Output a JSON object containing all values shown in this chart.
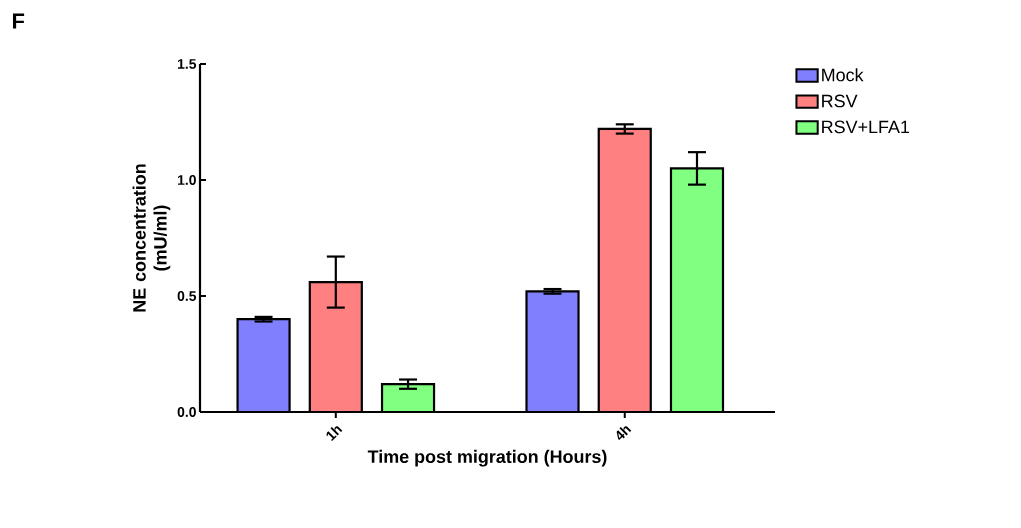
{
  "chart_data": {
    "type": "bar",
    "categories": [
      "1h",
      "4h"
    ],
    "xlabel": "Time post migration (Hours)",
    "ylabel": "NE concentration (mU/ml)",
    "annotations": [
      "F"
    ],
    "series": [
      {
        "name": "Mock",
        "color": "#8080ff",
        "values": [
          0.4,
          0.52
        ],
        "errors": [
          0.01,
          0.01
        ]
      },
      {
        "name": "RSV",
        "color": "#ff8080",
        "values": [
          0.56,
          1.22
        ],
        "errors": [
          0.11,
          0.02
        ]
      },
      {
        "name": "RSV+LFA1",
        "color": "#80ff80",
        "values": [
          0.12,
          1.05
        ],
        "errors": [
          0.02,
          0.07
        ]
      }
    ],
    "ylim": [
      0,
      1.5
    ],
    "yticks": [
      {
        "value": 0,
        "label": "0.0"
      },
      {
        "value": 0.5,
        "label": "0.5"
      },
      {
        "value": 1.0,
        "label": "1.0"
      },
      {
        "value": 1.5,
        "label": "1.5"
      }
    ],
    "grid": false,
    "legend": "right"
  }
}
